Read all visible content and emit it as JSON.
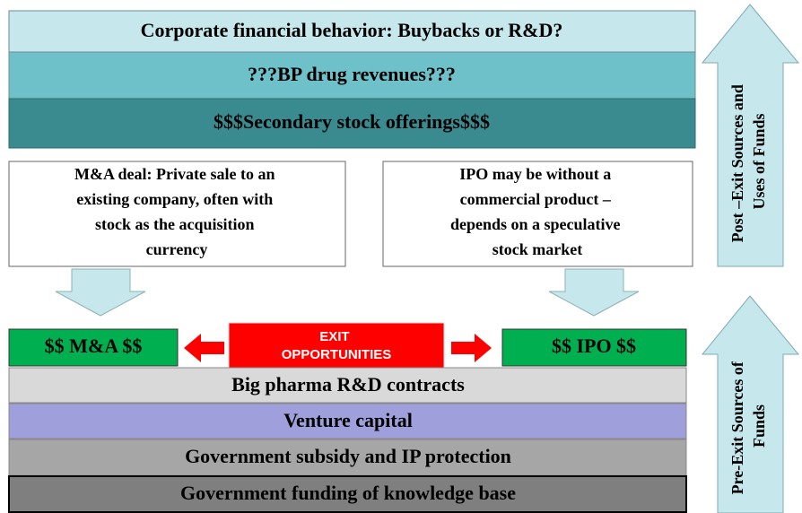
{
  "top_stack": [
    "Corporate financial behavior: Buybacks or R&D?",
    "???BP drug revenues???",
    "$$$Secondary stock offerings$$$"
  ],
  "left_box": [
    "M&A deal: Private sale to an",
    "existing company, often with",
    "stock as the acquisition",
    "currency"
  ],
  "right_box": [
    "IPO may be without a",
    "commercial product –",
    "depends on a speculative",
    "stock market"
  ],
  "exit": {
    "left": "$$ M&A $$",
    "center": [
      "EXIT",
      "OPPORTUNITIES"
    ],
    "right": "$$ IPO $$"
  },
  "bottom_stack": [
    "Big pharma R&D contracts",
    "Venture capital",
    "Government subsidy and IP protection",
    "Government funding of knowledge base"
  ],
  "post_exit_label": [
    "Post –Exit Sources and",
    "Uses of Funds"
  ],
  "pre_exit_label": [
    "Pre-Exit Sources of",
    "Funds"
  ]
}
